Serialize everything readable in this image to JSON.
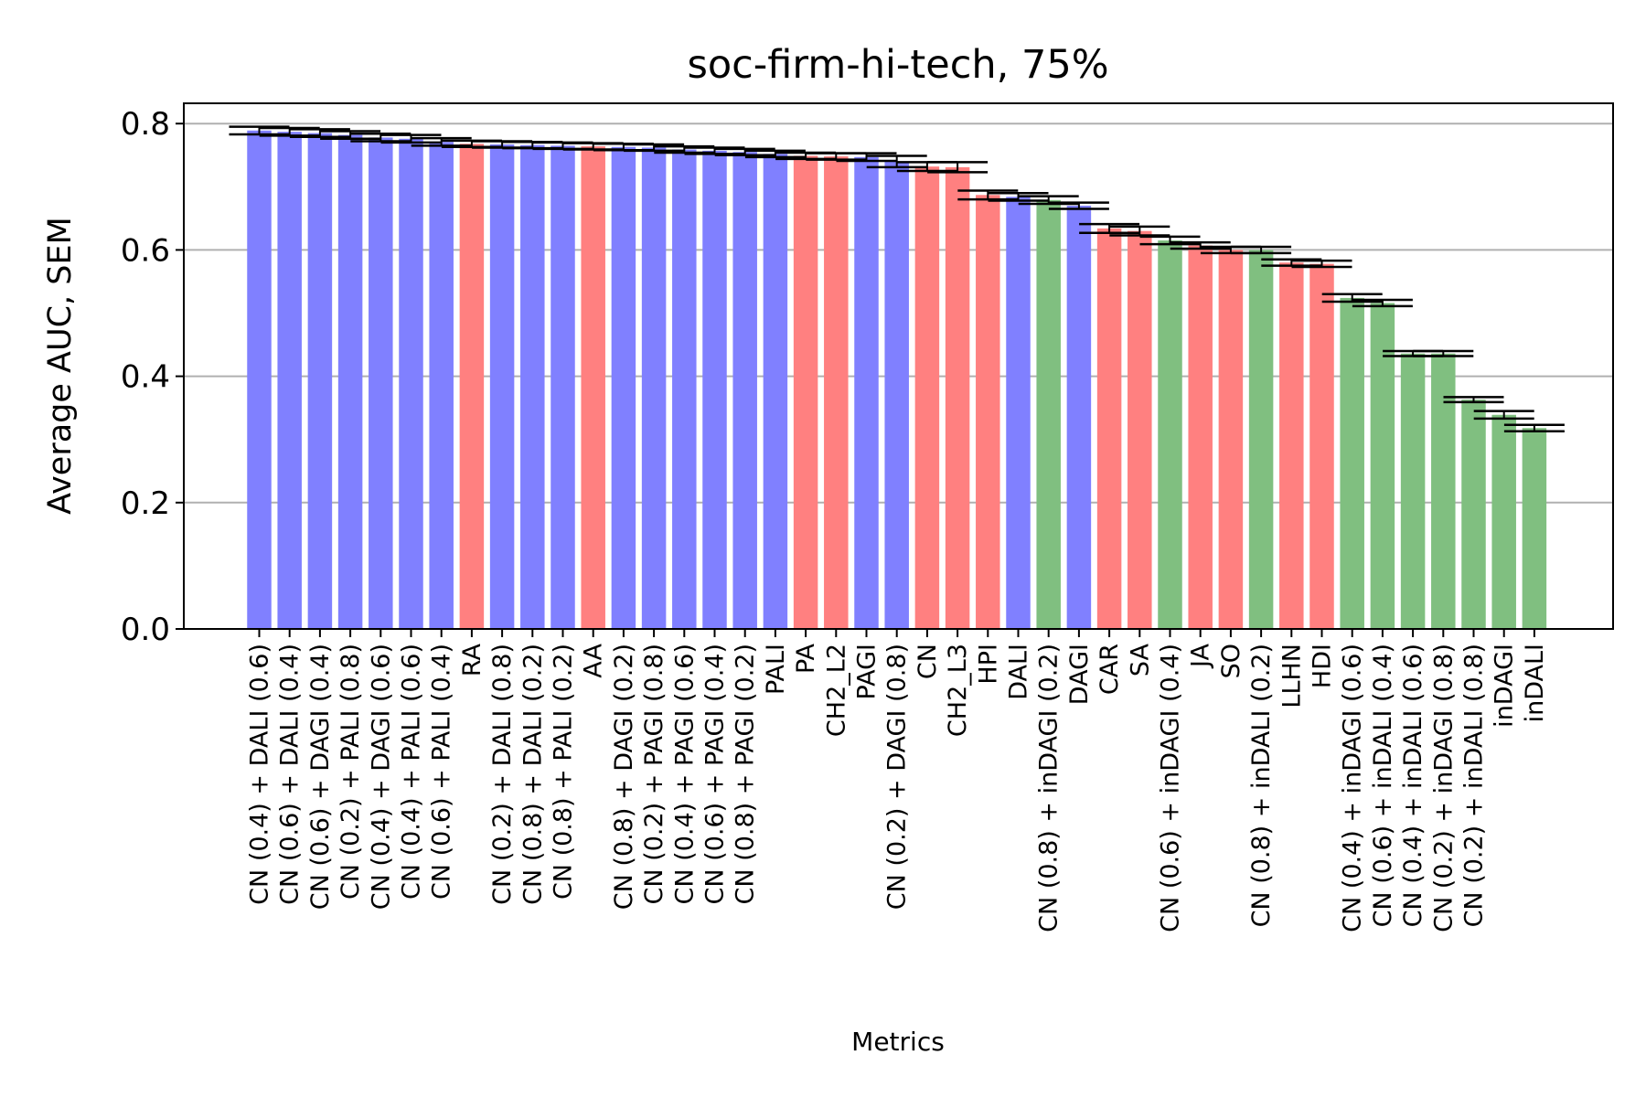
{
  "chart_data": {
    "type": "bar",
    "title": "soc-firm-hi-tech, 75%",
    "xlabel": "Metrics",
    "ylabel": "Average AUC, SEM",
    "ylim": [
      0,
      0.83
    ],
    "yticks": [
      "0.0",
      "0.2",
      "0.4",
      "0.6",
      "0.8"
    ],
    "ytick_values": [
      0.0,
      0.2,
      0.4,
      0.6,
      0.8
    ],
    "grid": "horizontal",
    "colors": {
      "blue": "#8080ff",
      "red": "#ff8080",
      "green": "#80bf80",
      "grid": "#b0b0b0"
    },
    "categories": [
      "CN (0.4) + DALI (0.6)",
      "CN (0.6) + DALI (0.4)",
      "CN (0.6) + DAGI (0.4)",
      "CN (0.2) + PALI (0.8)",
      "CN (0.4) + DAGI (0.6)",
      "CN (0.4) + PALI (0.6)",
      "CN (0.6) + PALI (0.4)",
      "RA",
      "CN (0.2) + DALI (0.8)",
      "CN (0.8) + DALI (0.2)",
      "CN (0.8) + PALI (0.2)",
      "AA",
      "CN (0.8) + DAGI (0.2)",
      "CN (0.2) + PAGI (0.8)",
      "CN (0.4) + PAGI (0.6)",
      "CN (0.6) + PAGI (0.4)",
      "CN (0.8) + PAGI (0.2)",
      "PALI",
      "PA",
      "CH2_L2",
      "PAGI",
      "CN (0.2) + DAGI (0.8)",
      "CN",
      "CH2_L3",
      "HPI",
      "DALI",
      "CN (0.8) + inDAGI (0.2)",
      "DAGI",
      "CAR",
      "SA",
      "CN (0.6) + inDAGI (0.4)",
      "JA",
      "SO",
      "CN (0.8) + inDALI (0.2)",
      "LLHN",
      "HDI",
      "CN (0.4) + inDAGI (0.6)",
      "CN (0.6) + inDALI (0.4)",
      "CN (0.4) + inDALI (0.6)",
      "CN (0.2) + inDAGI (0.8)",
      "CN (0.2) + inDALI (0.8)",
      "inDAGI",
      "inDALI"
    ],
    "values": [
      0.789,
      0.787,
      0.785,
      0.782,
      0.778,
      0.776,
      0.771,
      0.768,
      0.767,
      0.766,
      0.765,
      0.764,
      0.763,
      0.762,
      0.759,
      0.757,
      0.755,
      0.752,
      0.749,
      0.748,
      0.747,
      0.74,
      0.732,
      0.731,
      0.687,
      0.684,
      0.679,
      0.67,
      0.634,
      0.63,
      0.615,
      0.607,
      0.6,
      0.6,
      0.58,
      0.578,
      0.524,
      0.516,
      0.436,
      0.436,
      0.363,
      0.339,
      0.318
    ],
    "errors": [
      0.006,
      0.006,
      0.006,
      0.006,
      0.006,
      0.006,
      0.006,
      0.005,
      0.005,
      0.005,
      0.005,
      0.005,
      0.005,
      0.005,
      0.005,
      0.005,
      0.005,
      0.005,
      0.005,
      0.005,
      0.006,
      0.009,
      0.007,
      0.008,
      0.007,
      0.006,
      0.006,
      0.005,
      0.007,
      0.007,
      0.006,
      0.005,
      0.005,
      0.005,
      0.005,
      0.005,
      0.006,
      0.005,
      0.004,
      0.004,
      0.004,
      0.006,
      0.005
    ],
    "bar_colors": [
      "blue",
      "blue",
      "blue",
      "blue",
      "blue",
      "blue",
      "blue",
      "red",
      "blue",
      "blue",
      "blue",
      "red",
      "blue",
      "blue",
      "blue",
      "blue",
      "blue",
      "blue",
      "red",
      "red",
      "blue",
      "blue",
      "red",
      "red",
      "red",
      "blue",
      "green",
      "blue",
      "red",
      "red",
      "green",
      "red",
      "red",
      "green",
      "red",
      "red",
      "green",
      "green",
      "green",
      "green",
      "green",
      "green",
      "green"
    ]
  }
}
